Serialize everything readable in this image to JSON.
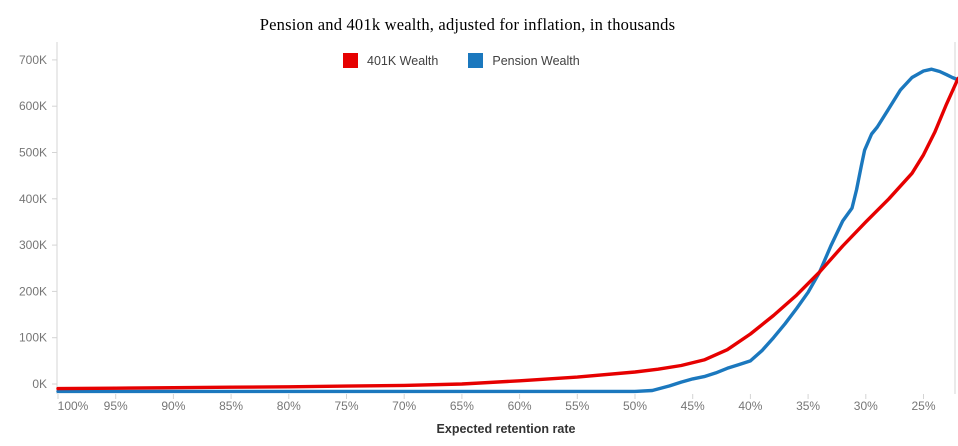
{
  "title": "Pension and 401k wealth, adjusted for inflation, in thousands",
  "chart_data": {
    "type": "line",
    "title": "Pension and 401k wealth, adjusted for inflation, in thousands",
    "xlabel": "Expected retention rate",
    "ylabel": "",
    "legend_position": "top",
    "grid": false,
    "x_axis": {
      "direction": "decreasing",
      "domain": [
        100,
        22
      ],
      "tick_values": [
        100,
        95,
        90,
        85,
        80,
        75,
        70,
        65,
        60,
        55,
        50,
        45,
        40,
        35,
        30,
        25
      ],
      "tick_labels": [
        "100%",
        "95%",
        "90%",
        "85%",
        "80%",
        "75%",
        "70%",
        "65%",
        "60%",
        "55%",
        "50%",
        "45%",
        "40%",
        "35%",
        "30%",
        "25%"
      ]
    },
    "y_axis": {
      "domain": [
        -22,
        743
      ],
      "tick_values": [
        0,
        100,
        200,
        300,
        400,
        500,
        600,
        700
      ],
      "tick_labels": [
        "0K",
        "100K",
        "200K",
        "300K",
        "400K",
        "500K",
        "600K",
        "700K"
      ]
    },
    "series": [
      {
        "name": "Pension Wealth",
        "color": "#1b78be",
        "points": [
          [
            100,
            -16
          ],
          [
            95,
            -16
          ],
          [
            90,
            -16
          ],
          [
            85,
            -16
          ],
          [
            80,
            -16
          ],
          [
            75,
            -16
          ],
          [
            70,
            -16
          ],
          [
            65,
            -16
          ],
          [
            60,
            -16
          ],
          [
            55,
            -16
          ],
          [
            50,
            -16
          ],
          [
            48.5,
            -14
          ],
          [
            47,
            -4
          ],
          [
            46,
            4
          ],
          [
            45,
            11
          ],
          [
            44,
            16
          ],
          [
            43,
            24
          ],
          [
            42,
            34
          ],
          [
            41,
            42
          ],
          [
            40,
            50
          ],
          [
            39,
            72
          ],
          [
            38,
            100
          ],
          [
            37,
            130
          ],
          [
            36,
            163
          ],
          [
            35,
            198
          ],
          [
            34,
            242
          ],
          [
            33,
            300
          ],
          [
            32,
            352
          ],
          [
            31.2,
            380
          ],
          [
            30.8,
            420
          ],
          [
            30.4,
            470
          ],
          [
            30.1,
            505
          ],
          [
            29.5,
            540
          ],
          [
            29,
            555
          ],
          [
            28,
            595
          ],
          [
            27,
            635
          ],
          [
            26,
            662
          ],
          [
            25,
            676
          ],
          [
            24.3,
            680
          ],
          [
            23.6,
            675
          ],
          [
            23,
            668
          ],
          [
            22.5,
            662
          ],
          [
            22,
            657
          ]
        ]
      },
      {
        "name": "401K Wealth",
        "color": "#e60000",
        "points": [
          [
            100,
            -10
          ],
          [
            95,
            -9
          ],
          [
            90,
            -8
          ],
          [
            85,
            -7
          ],
          [
            80,
            -6
          ],
          [
            75,
            -4.5
          ],
          [
            70,
            -3
          ],
          [
            65,
            0
          ],
          [
            60,
            7
          ],
          [
            55,
            15
          ],
          [
            50,
            26
          ],
          [
            48,
            32
          ],
          [
            46,
            40
          ],
          [
            44,
            52
          ],
          [
            42,
            74
          ],
          [
            40,
            108
          ],
          [
            38,
            148
          ],
          [
            36,
            192
          ],
          [
            34,
            242
          ],
          [
            32,
            298
          ],
          [
            30,
            350
          ],
          [
            28,
            400
          ],
          [
            26,
            455
          ],
          [
            25,
            495
          ],
          [
            24,
            545
          ],
          [
            23,
            605
          ],
          [
            22,
            660
          ]
        ]
      }
    ],
    "legend_order": [
      "401K Wealth",
      "Pension Wealth"
    ]
  },
  "colors": {
    "axis_line": "#d4d4d4",
    "tick_label": "#767676",
    "axis_title": "#333333"
  }
}
